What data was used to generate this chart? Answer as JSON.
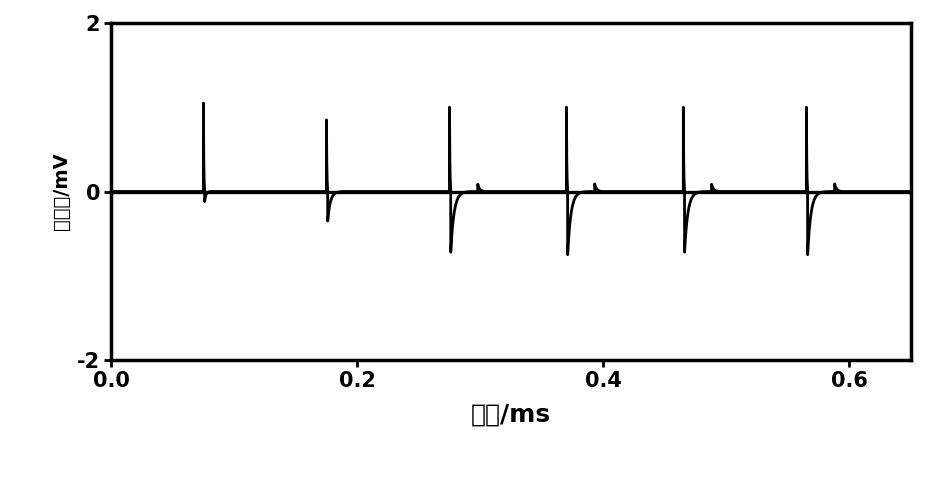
{
  "xlabel": "时间/ms",
  "ylabel": "号幅値/mV",
  "xlim": [
    0.0,
    0.65
  ],
  "ylim": [
    -2.0,
    2.0
  ],
  "xticks": [
    0.0,
    0.2,
    0.4,
    0.6
  ],
  "xtick_labels": [
    "0.0",
    "0.2",
    "0.4",
    "0.6"
  ],
  "yticks": [
    -2,
    0,
    2
  ],
  "ytick_labels": [
    "-2",
    "0",
    "2"
  ],
  "pulse_times": [
    0.075,
    0.175,
    0.275,
    0.37,
    0.465,
    0.565
  ],
  "pulse_positive_heights": [
    1.05,
    0.85,
    1.0,
    1.0,
    1.0,
    1.0
  ],
  "pulse_negative_depths": [
    0.12,
    0.35,
    0.72,
    0.75,
    0.72,
    0.75
  ],
  "neg_decay_short": [
    true,
    false,
    false,
    false,
    false,
    false
  ],
  "line_color": "#000000",
  "background_color": "#ffffff",
  "xlabel_fontsize": 18,
  "ylabel_fontsize": 14,
  "tick_fontsize": 15,
  "linewidth": 2.0,
  "spine_linewidth": 2.5
}
